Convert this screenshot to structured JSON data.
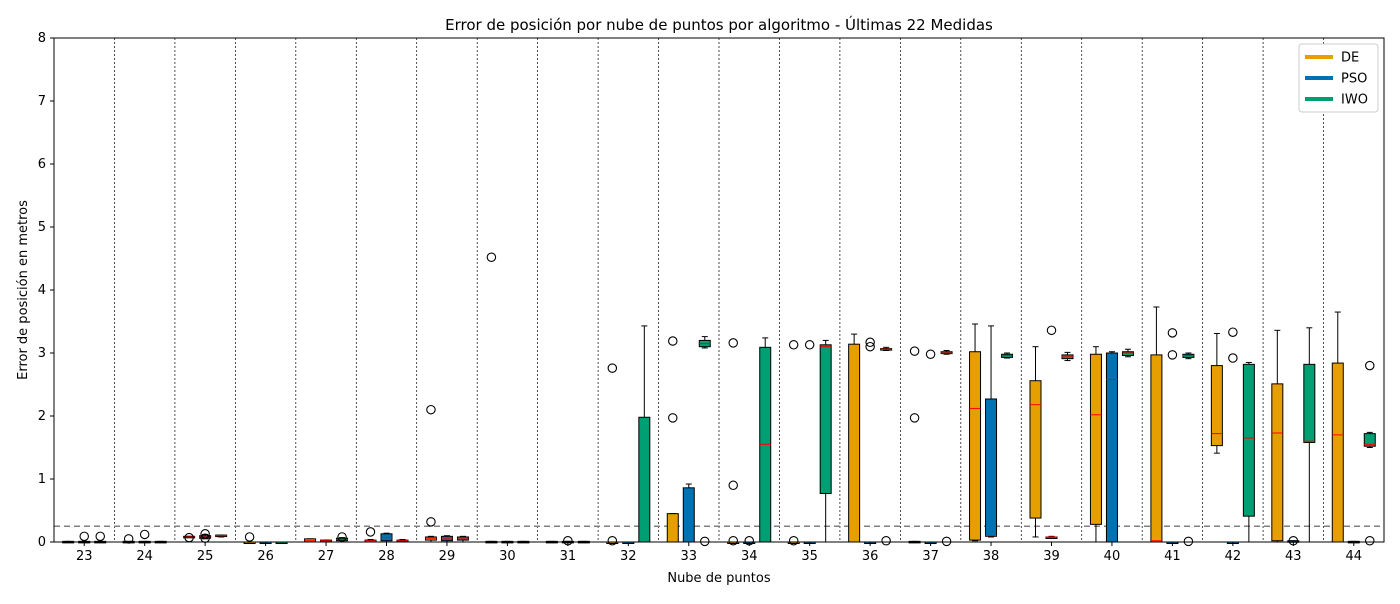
{
  "chart_data": {
    "type": "boxplot",
    "title": "Error de posición por nube de puntos por algoritmo - Últimas 22 Medidas",
    "xlabel": "Nube de puntos",
    "ylabel": "Error de posición en metros",
    "ylim": [
      0,
      8
    ],
    "yticks": [
      "0",
      "1",
      "2",
      "3",
      "4",
      "5",
      "6",
      "7",
      "8"
    ],
    "threshold": 0.25,
    "grid": "vertical dashed separators between groups",
    "legend_position": "top-right",
    "categories": [
      "23",
      "24",
      "25",
      "26",
      "27",
      "28",
      "29",
      "30",
      "31",
      "32",
      "33",
      "34",
      "35",
      "36",
      "37",
      "38",
      "39",
      "40",
      "41",
      "42",
      "43",
      "44"
    ],
    "series": [
      {
        "name": "DE",
        "color": "#e69f00",
        "boxes": [
          {
            "min": 0,
            "q1": 0,
            "median": 0,
            "q3": 0.01,
            "max": 0.01,
            "outliers": []
          },
          {
            "min": 0,
            "q1": 0,
            "median": 0,
            "q3": 0.01,
            "max": 0.01,
            "outliers": [
              0.05
            ]
          },
          {
            "min": 0.08,
            "q1": 0.08,
            "median": 0.08,
            "q3": 0.09,
            "max": 0.09,
            "outliers": [
              0.07
            ]
          },
          {
            "min": 0,
            "q1": 0,
            "median": 0,
            "q3": 0,
            "max": 0,
            "outliers": [
              0.08
            ]
          },
          {
            "min": 0,
            "q1": 0,
            "median": 0.02,
            "q3": 0.05,
            "max": 0.05,
            "outliers": []
          },
          {
            "min": 0,
            "q1": 0,
            "median": 0.02,
            "q3": 0.03,
            "max": 0.04,
            "outliers": [
              0.16
            ]
          },
          {
            "min": 0,
            "q1": 0.03,
            "median": 0.06,
            "q3": 0.08,
            "max": 0.09,
            "outliers": [
              0.32,
              2.1
            ]
          },
          {
            "min": 0,
            "q1": 0,
            "median": 0,
            "q3": 0.01,
            "max": 0.01,
            "outliers": [
              4.52
            ]
          },
          {
            "min": 0,
            "q1": 0,
            "median": 0,
            "q3": 0.01,
            "max": 0.01,
            "outliers": []
          },
          {
            "min": 0,
            "q1": 0,
            "median": 0,
            "q3": 0,
            "max": 0,
            "outliers": [
              2.76,
              0.02
            ]
          },
          {
            "min": 0,
            "q1": 0,
            "median": 0,
            "q3": 0.45,
            "max": 0.45,
            "outliers": [
              1.97,
              3.19
            ]
          },
          {
            "min": 0,
            "q1": 0,
            "median": 0,
            "q3": 0,
            "max": 0,
            "outliers": [
              0.9,
              3.16,
              0.02
            ]
          },
          {
            "min": 0,
            "q1": 0,
            "median": 0,
            "q3": 0,
            "max": 0,
            "outliers": [
              3.13,
              0.02
            ]
          },
          {
            "min": 0,
            "q1": 0,
            "median": 0,
            "q3": 3.14,
            "max": 3.3,
            "outliers": []
          },
          {
            "min": 0,
            "q1": 0,
            "median": 0,
            "q3": 0.01,
            "max": 0.01,
            "outliers": [
              1.97,
              3.03
            ]
          },
          {
            "min": 0.02,
            "q1": 0.03,
            "median": 2.12,
            "q3": 3.02,
            "max": 3.46,
            "outliers": []
          },
          {
            "min": 0.08,
            "q1": 0.38,
            "median": 2.18,
            "q3": 2.56,
            "max": 3.1,
            "outliers": []
          },
          {
            "min": 0,
            "q1": 0.28,
            "median": 2.02,
            "q3": 2.98,
            "max": 3.1,
            "outliers": []
          },
          {
            "min": 0,
            "q1": 0,
            "median": 0.02,
            "q3": 2.97,
            "max": 3.73,
            "outliers": []
          },
          {
            "min": 1.41,
            "q1": 1.53,
            "median": 1.72,
            "q3": 2.8,
            "max": 3.31,
            "outliers": []
          },
          {
            "min": 0,
            "q1": 0.02,
            "median": 1.73,
            "q3": 2.51,
            "max": 3.36,
            "outliers": []
          },
          {
            "min": 0,
            "q1": 0,
            "median": 1.7,
            "q3": 2.84,
            "max": 3.65,
            "outliers": []
          }
        ]
      },
      {
        "name": "PSO",
        "color": "#0072b2",
        "boxes": [
          {
            "min": 0,
            "q1": 0,
            "median": 0,
            "q3": 0.01,
            "max": 0.01,
            "outliers": [
              0.09
            ]
          },
          {
            "min": 0,
            "q1": 0,
            "median": 0,
            "q3": 0.01,
            "max": 0.01,
            "outliers": [
              0.12
            ]
          },
          {
            "min": 0.05,
            "q1": 0.06,
            "median": 0.08,
            "q3": 0.1,
            "max": 0.12,
            "outliers": [
              0.13,
              0.06
            ]
          },
          {
            "min": 0,
            "q1": 0,
            "median": 0,
            "q3": 0,
            "max": 0,
            "outliers": []
          },
          {
            "min": 0,
            "q1": 0,
            "median": 0.02,
            "q3": 0.03,
            "max": 0.03,
            "outliers": []
          },
          {
            "min": 0,
            "q1": 0.02,
            "median": 0.07,
            "q3": 0.13,
            "max": 0.14,
            "outliers": []
          },
          {
            "min": 0,
            "q1": 0.02,
            "median": 0.05,
            "q3": 0.09,
            "max": 0.1,
            "outliers": []
          },
          {
            "min": 0,
            "q1": 0,
            "median": 0,
            "q3": 0.01,
            "max": 0.01,
            "outliers": []
          },
          {
            "min": 0,
            "q1": 0,
            "median": 0,
            "q3": 0.01,
            "max": 0.01,
            "outliers": [
              0.02
            ]
          },
          {
            "min": 0,
            "q1": 0,
            "median": 0,
            "q3": 0,
            "max": 0,
            "outliers": []
          },
          {
            "min": 0,
            "q1": 0,
            "median": 0,
            "q3": 0.86,
            "max": 0.92,
            "outliers": []
          },
          {
            "min": 0,
            "q1": 0,
            "median": 0,
            "q3": 0,
            "max": 0,
            "outliers": [
              0.02
            ]
          },
          {
            "min": 0,
            "q1": 0,
            "median": 0,
            "q3": 0,
            "max": 0,
            "outliers": [
              3.13
            ]
          },
          {
            "min": 0,
            "q1": 0,
            "median": 0,
            "q3": 0,
            "max": 0,
            "outliers": [
              3.17,
              3.1
            ]
          },
          {
            "min": 0,
            "q1": 0,
            "median": 0,
            "q3": 0,
            "max": 0,
            "outliers": [
              2.98
            ]
          },
          {
            "min": 0.08,
            "q1": 0.09,
            "median": 0.1,
            "q3": 2.27,
            "max": 3.43,
            "outliers": []
          },
          {
            "min": 0.07,
            "q1": 0.07,
            "median": 0.08,
            "q3": 0.08,
            "max": 0.09,
            "outliers": [
              3.36
            ]
          },
          {
            "min": 0,
            "q1": 0,
            "median": 2.58,
            "q3": 3.0,
            "max": 3.02,
            "outliers": []
          },
          {
            "min": 0,
            "q1": 0,
            "median": 0,
            "q3": 0,
            "max": 0,
            "outliers": [
              3.32,
              2.97
            ]
          },
          {
            "min": 0,
            "q1": 0,
            "median": 0,
            "q3": 0,
            "max": 0,
            "outliers": [
              2.92,
              3.33
            ]
          },
          {
            "min": 0,
            "q1": 0,
            "median": 0,
            "q3": 0.02,
            "max": 0.02,
            "outliers": [
              0.02
            ]
          },
          {
            "min": 0,
            "q1": 0,
            "median": 0,
            "q3": 0.01,
            "max": 0.01,
            "outliers": []
          }
        ]
      },
      {
        "name": "IWO",
        "color": "#009e73",
        "boxes": [
          {
            "min": 0,
            "q1": 0,
            "median": 0,
            "q3": 0.01,
            "max": 0.01,
            "outliers": [
              0.09
            ]
          },
          {
            "min": 0,
            "q1": 0,
            "median": 0,
            "q3": 0.01,
            "max": 0.01,
            "outliers": []
          },
          {
            "min": 0.08,
            "q1": 0.09,
            "median": 0.1,
            "q3": 0.11,
            "max": 0.11,
            "outliers": []
          },
          {
            "min": 0,
            "q1": 0,
            "median": 0,
            "q3": 0,
            "max": 0,
            "outliers": []
          },
          {
            "min": 0,
            "q1": 0.02,
            "median": 0.04,
            "q3": 0.06,
            "max": 0.07,
            "outliers": [
              0.08
            ]
          },
          {
            "min": 0,
            "q1": 0.01,
            "median": 0.02,
            "q3": 0.03,
            "max": 0.04,
            "outliers": []
          },
          {
            "min": 0,
            "q1": 0.03,
            "median": 0.05,
            "q3": 0.08,
            "max": 0.09,
            "outliers": []
          },
          {
            "min": 0,
            "q1": 0,
            "median": 0,
            "q3": 0.01,
            "max": 0.01,
            "outliers": []
          },
          {
            "min": 0,
            "q1": 0,
            "median": 0,
            "q3": 0.01,
            "max": 0.01,
            "outliers": []
          },
          {
            "min": 0,
            "q1": 0,
            "median": 0,
            "q3": 1.98,
            "max": 3.43,
            "outliers": []
          },
          {
            "min": 3.08,
            "q1": 3.1,
            "median": 3.15,
            "q3": 3.2,
            "max": 3.26,
            "outliers": [
              0.01
            ]
          },
          {
            "min": 0,
            "q1": 0,
            "median": 1.55,
            "q3": 3.09,
            "max": 3.24,
            "outliers": []
          },
          {
            "min": 0,
            "q1": 0.77,
            "median": 3.1,
            "q3": 3.13,
            "max": 3.2,
            "outliers": []
          },
          {
            "min": 3.04,
            "q1": 3.05,
            "median": 3.06,
            "q3": 3.07,
            "max": 3.09,
            "outliers": [
              0.02
            ]
          },
          {
            "min": 2.98,
            "q1": 2.99,
            "median": 3.0,
            "q3": 3.02,
            "max": 3.04,
            "outliers": [
              0.01
            ]
          },
          {
            "min": 2.92,
            "q1": 2.93,
            "median": 2.96,
            "q3": 2.98,
            "max": 3.0,
            "outliers": []
          },
          {
            "min": 2.88,
            "q1": 2.91,
            "median": 2.94,
            "q3": 2.97,
            "max": 3.01,
            "outliers": []
          },
          {
            "min": 2.94,
            "q1": 2.96,
            "median": 3.0,
            "q3": 3.02,
            "max": 3.06,
            "outliers": []
          },
          {
            "min": 2.91,
            "q1": 2.93,
            "median": 2.96,
            "q3": 2.98,
            "max": 3.0,
            "outliers": [
              0.01
            ]
          },
          {
            "min": 0,
            "q1": 0.41,
            "median": 1.65,
            "q3": 2.82,
            "max": 2.85,
            "outliers": []
          },
          {
            "min": 0,
            "q1": 1.58,
            "median": 1.6,
            "q3": 2.82,
            "max": 3.4,
            "outliers": []
          },
          {
            "min": 1.5,
            "q1": 1.52,
            "median": 1.55,
            "q3": 1.72,
            "max": 1.74,
            "outliers": [
              2.8,
              0.02
            ]
          }
        ]
      }
    ]
  }
}
